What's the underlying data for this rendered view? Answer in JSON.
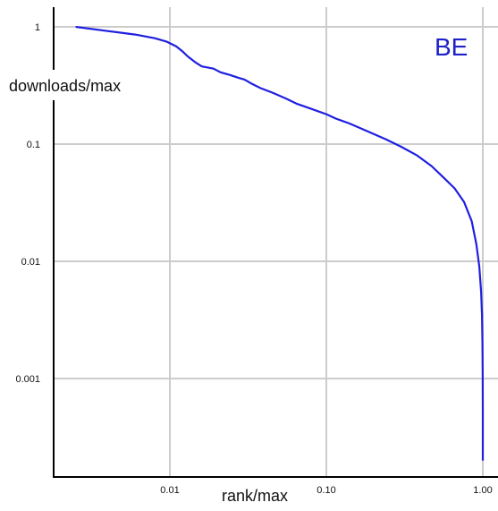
{
  "chart_data": {
    "type": "line",
    "title": "BE",
    "xlabel": "rank/max",
    "ylabel": "downloads/max",
    "xscale": "log",
    "yscale": "log",
    "xlim": [
      0.0019,
      1.04
    ],
    "ylim": [
      0.00012,
      1.5
    ],
    "grid": true,
    "xticks": [
      {
        "value": 0.01,
        "label": "0.01"
      },
      {
        "value": 0.1,
        "label": "0.10"
      },
      {
        "value": 1.0,
        "label": "1.00"
      }
    ],
    "yticks": [
      {
        "value": 1,
        "label": "1"
      },
      {
        "value": 0.1,
        "label": "0.1"
      },
      {
        "value": 0.01,
        "label": "0.01"
      },
      {
        "value": 0.001,
        "label": "0.001"
      }
    ],
    "series": [
      {
        "color": "#1f1fe0",
        "x": [
          0.0025,
          0.004,
          0.006,
          0.008,
          0.0095,
          0.011,
          0.012,
          0.013,
          0.0145,
          0.016,
          0.019,
          0.021,
          0.024,
          0.027,
          0.03,
          0.033,
          0.038,
          0.045,
          0.055,
          0.065,
          0.08,
          0.1,
          0.115,
          0.14,
          0.18,
          0.24,
          0.3,
          0.38,
          0.47,
          0.56,
          0.66,
          0.76,
          0.85,
          0.91,
          0.95,
          0.975,
          0.988,
          0.995,
          0.999,
          1.0,
          1.0
        ],
        "y": [
          1.0,
          0.92,
          0.86,
          0.8,
          0.75,
          0.68,
          0.62,
          0.56,
          0.5,
          0.46,
          0.44,
          0.41,
          0.39,
          0.37,
          0.355,
          0.33,
          0.3,
          0.275,
          0.245,
          0.22,
          0.2,
          0.18,
          0.165,
          0.15,
          0.13,
          0.11,
          0.095,
          0.08,
          0.065,
          0.052,
          0.042,
          0.032,
          0.022,
          0.014,
          0.009,
          0.0055,
          0.0035,
          0.002,
          0.001,
          0.0005,
          0.0002
        ]
      }
    ]
  }
}
